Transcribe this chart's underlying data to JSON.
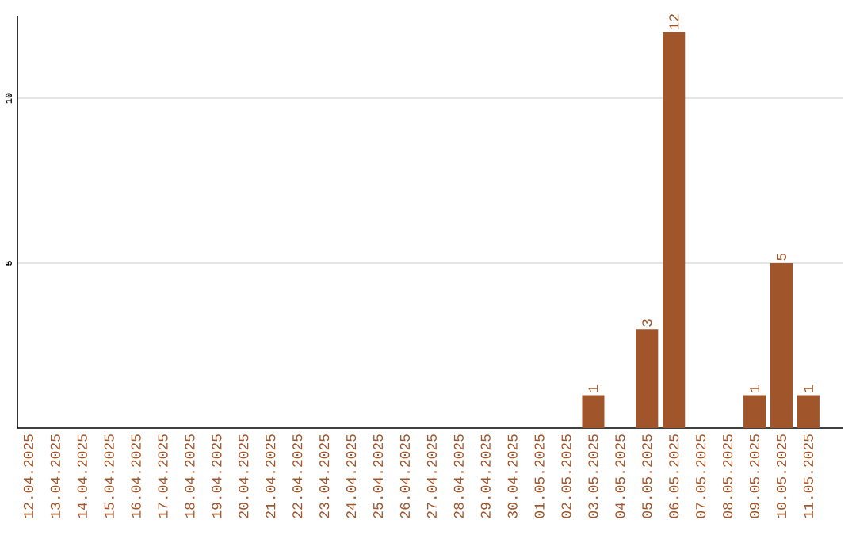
{
  "chart_data": {
    "type": "bar",
    "categories": [
      "12.04.2025",
      "13.04.2025",
      "14.04.2025",
      "15.04.2025",
      "16.04.2025",
      "17.04.2025",
      "18.04.2025",
      "19.04.2025",
      "20.04.2025",
      "21.04.2025",
      "22.04.2025",
      "23.04.2025",
      "24.04.2025",
      "25.04.2025",
      "26.04.2025",
      "27.04.2025",
      "28.04.2025",
      "29.04.2025",
      "30.04.2025",
      "01.05.2025",
      "02.05.2025",
      "03.05.2025",
      "04.05.2025",
      "05.05.2025",
      "06.05.2025",
      "07.05.2025",
      "08.05.2025",
      "09.05.2025",
      "10.05.2025",
      "11.05.2025"
    ],
    "values": [
      0,
      0,
      0,
      0,
      0,
      0,
      0,
      0,
      0,
      0,
      0,
      0,
      0,
      0,
      0,
      0,
      0,
      0,
      0,
      0,
      0,
      1,
      0,
      3,
      12,
      0,
      0,
      1,
      5,
      1
    ],
    "value_labels": [
      null,
      null,
      null,
      null,
      null,
      null,
      null,
      null,
      null,
      null,
      null,
      null,
      null,
      null,
      null,
      null,
      null,
      null,
      null,
      null,
      null,
      "1",
      null,
      "3",
      "12",
      null,
      null,
      "1",
      "5",
      "1"
    ],
    "color": "#a0562a",
    "ylim": [
      0,
      12.5
    ],
    "yticks": [
      5,
      10
    ],
    "grid": "y"
  }
}
